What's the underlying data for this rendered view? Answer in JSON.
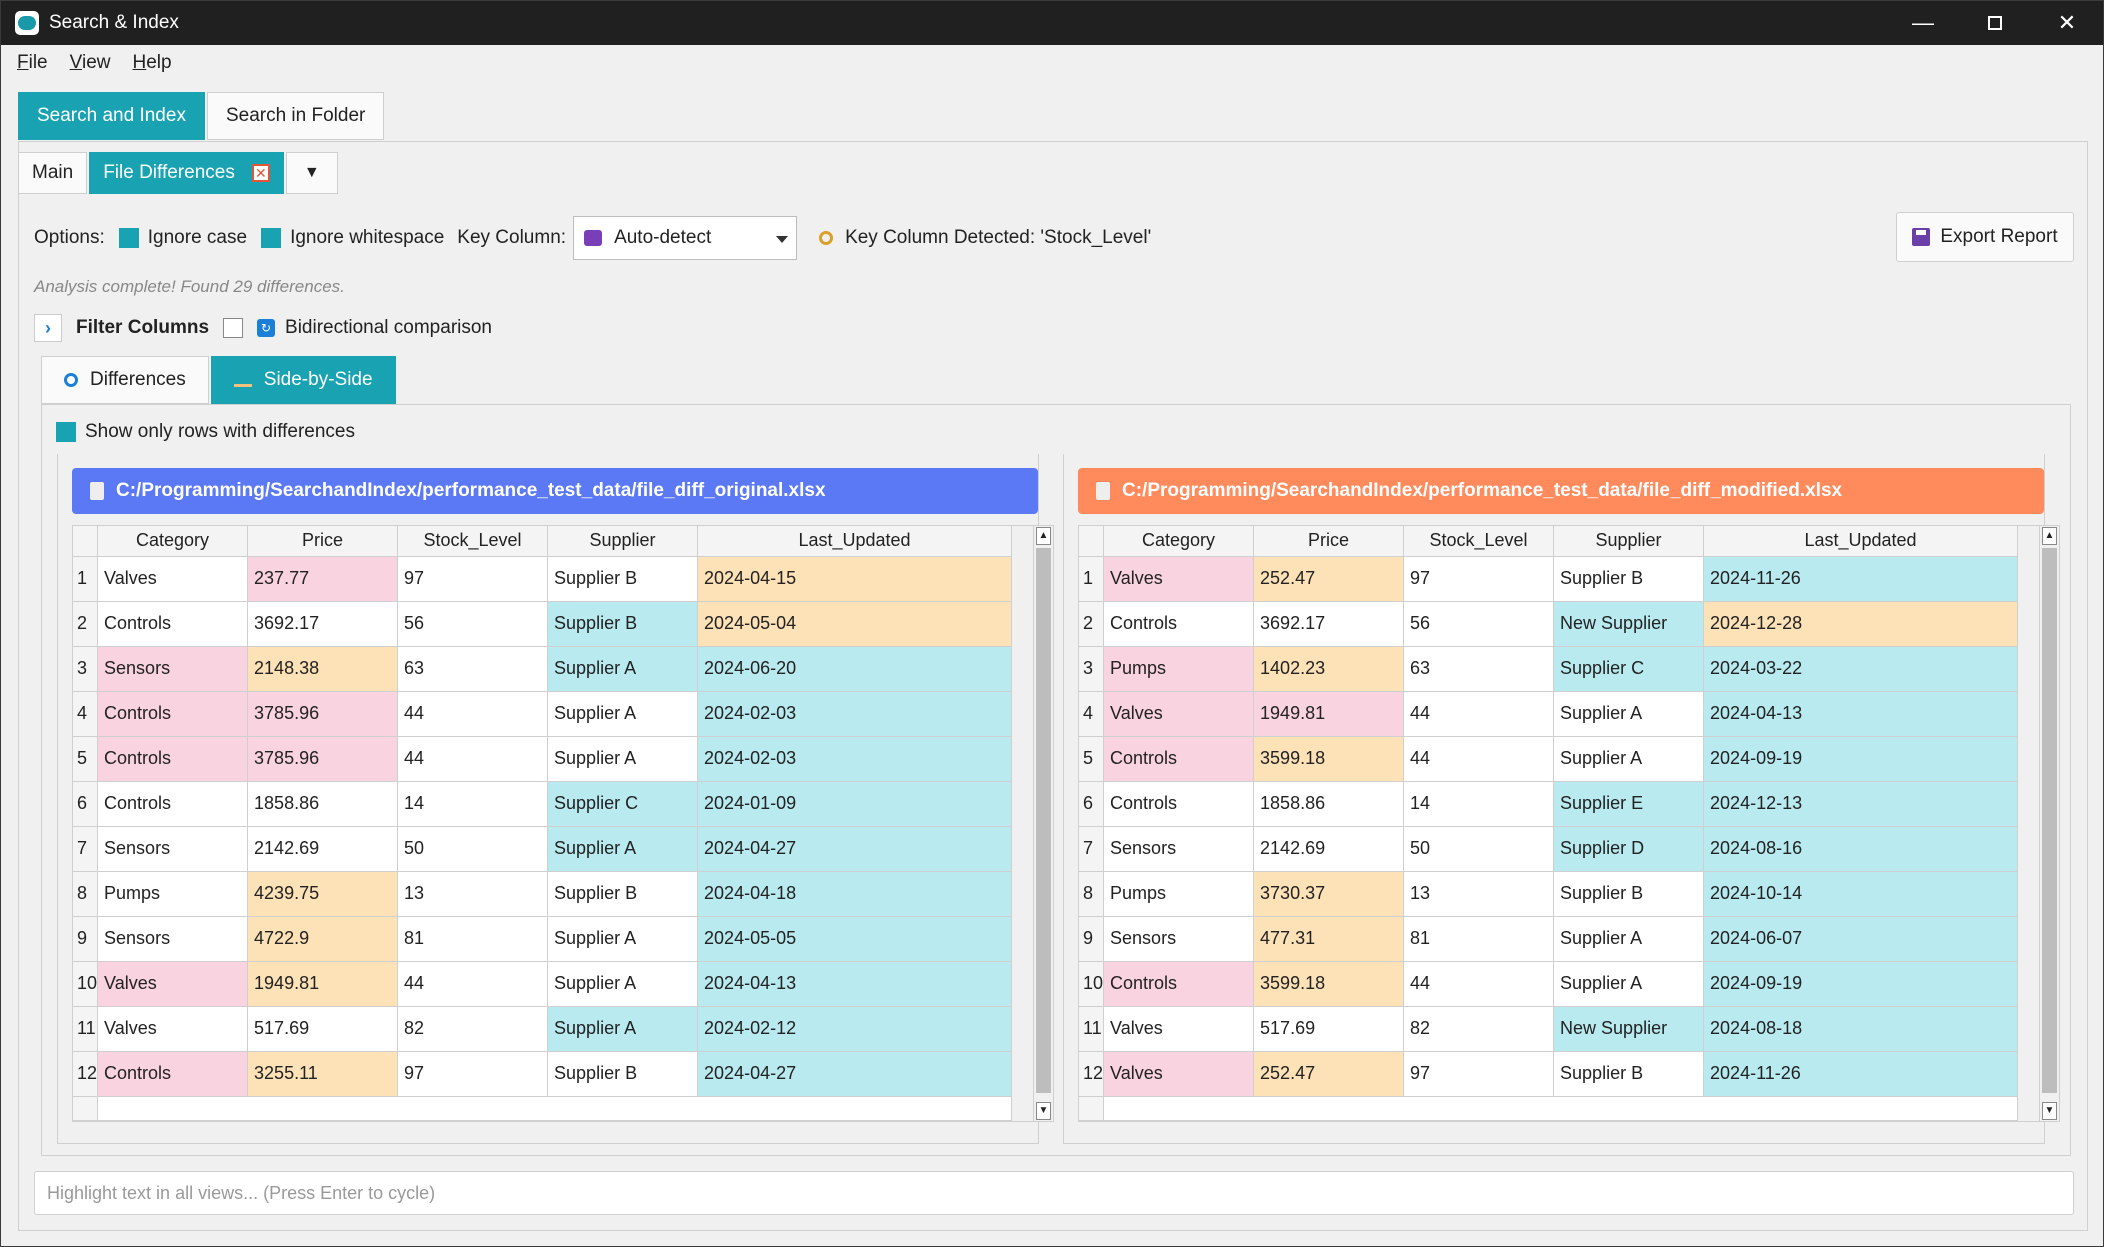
{
  "window": {
    "title": "Search & Index"
  },
  "menu": {
    "file": "File",
    "file_u": "F",
    "file_rest": "ile",
    "view": "View",
    "view_u": "V",
    "view_rest": "iew",
    "help": "Help",
    "help_u": "H",
    "help_rest": "elp"
  },
  "top_tabs": [
    {
      "label": "Search and Index",
      "active": true
    },
    {
      "label": "Search in Folder",
      "active": false
    }
  ],
  "sub_tabs": {
    "main": "Main",
    "file_diff": "File Differences"
  },
  "options": {
    "label": "Options:",
    "ignore_case": "Ignore case",
    "ignore_whitespace": "Ignore whitespace",
    "key_column_label": "Key Column:",
    "key_column_value": "Auto-detect",
    "key_detected": "Key Column Detected: 'Stock_Level'",
    "export": "Export Report"
  },
  "status": "Analysis complete! Found 29 differences.",
  "filter": {
    "label": "Filter Columns",
    "bidirectional": "Bidirectional comparison"
  },
  "view_tabs": {
    "differences": "Differences",
    "side_by_side": "Side-by-Side"
  },
  "show_only": "Show only rows with differences",
  "colors": {
    "accent": "#19a2b2",
    "left_header": "#5b78f5",
    "right_header": "#ff8a5c",
    "diff_pink": "#f9d3e0",
    "diff_orange": "#fde1b7",
    "diff_cyan": "#b8eaf0"
  },
  "left": {
    "path": "C:/Programming/SearchandIndex/performance_test_data/file_diff_original.xlsx",
    "columns": [
      "Category",
      "Price",
      "Stock_Level",
      "Supplier",
      "Last_Updated"
    ],
    "rows": [
      {
        "n": "1",
        "cells": [
          "Valves",
          "237.77",
          "97",
          "Supplier B",
          "2024-04-15"
        ],
        "hl": [
          "",
          "pink",
          "",
          "",
          "orange"
        ]
      },
      {
        "n": "2",
        "cells": [
          "Controls",
          "3692.17",
          "56",
          "Supplier B",
          "2024-05-04"
        ],
        "hl": [
          "",
          "",
          "",
          "cyan",
          "orange"
        ]
      },
      {
        "n": "3",
        "cells": [
          "Sensors",
          "2148.38",
          "63",
          "Supplier A",
          "2024-06-20"
        ],
        "hl": [
          "pink",
          "orange",
          "",
          "cyan",
          "cyan"
        ]
      },
      {
        "n": "4",
        "cells": [
          "Controls",
          "3785.96",
          "44",
          "Supplier A",
          "2024-02-03"
        ],
        "hl": [
          "pink",
          "pink",
          "",
          "",
          "cyan"
        ]
      },
      {
        "n": "5",
        "cells": [
          "Controls",
          "3785.96",
          "44",
          "Supplier A",
          "2024-02-03"
        ],
        "hl": [
          "pink",
          "pink",
          "",
          "",
          "cyan"
        ]
      },
      {
        "n": "6",
        "cells": [
          "Controls",
          "1858.86",
          "14",
          "Supplier C",
          "2024-01-09"
        ],
        "hl": [
          "",
          "",
          "",
          "cyan",
          "cyan"
        ]
      },
      {
        "n": "7",
        "cells": [
          "Sensors",
          "2142.69",
          "50",
          "Supplier A",
          "2024-04-27"
        ],
        "hl": [
          "",
          "",
          "",
          "cyan",
          "cyan"
        ]
      },
      {
        "n": "8",
        "cells": [
          "Pumps",
          "4239.75",
          "13",
          "Supplier B",
          "2024-04-18"
        ],
        "hl": [
          "",
          "orange",
          "",
          "",
          "cyan"
        ]
      },
      {
        "n": "9",
        "cells": [
          "Sensors",
          "4722.9",
          "81",
          "Supplier A",
          "2024-05-05"
        ],
        "hl": [
          "",
          "orange",
          "",
          "",
          "cyan"
        ]
      },
      {
        "n": "10",
        "cells": [
          "Valves",
          "1949.81",
          "44",
          "Supplier A",
          "2024-04-13"
        ],
        "hl": [
          "pink",
          "orange",
          "",
          "",
          "cyan"
        ]
      },
      {
        "n": "11",
        "cells": [
          "Valves",
          "517.69",
          "82",
          "Supplier A",
          "2024-02-12"
        ],
        "hl": [
          "",
          "",
          "",
          "cyan",
          "cyan"
        ]
      },
      {
        "n": "12",
        "cells": [
          "Controls",
          "3255.11",
          "97",
          "Supplier B",
          "2024-04-27"
        ],
        "hl": [
          "pink",
          "orange",
          "",
          "",
          "cyan"
        ]
      }
    ]
  },
  "right": {
    "path": "C:/Programming/SearchandIndex/performance_test_data/file_diff_modified.xlsx",
    "columns": [
      "Category",
      "Price",
      "Stock_Level",
      "Supplier",
      "Last_Updated"
    ],
    "rows": [
      {
        "n": "1",
        "cells": [
          "Valves",
          "252.47",
          "97",
          "Supplier B",
          "2024-11-26"
        ],
        "hl": [
          "pink",
          "orange",
          "",
          "",
          "cyan"
        ]
      },
      {
        "n": "2",
        "cells": [
          "Controls",
          "3692.17",
          "56",
          "New Supplier",
          "2024-12-28"
        ],
        "hl": [
          "",
          "",
          "",
          "cyan",
          "orange"
        ]
      },
      {
        "n": "3",
        "cells": [
          "Pumps",
          "1402.23",
          "63",
          "Supplier C",
          "2024-03-22"
        ],
        "hl": [
          "pink",
          "orange",
          "",
          "cyan",
          "cyan"
        ]
      },
      {
        "n": "4",
        "cells": [
          "Valves",
          "1949.81",
          "44",
          "Supplier A",
          "2024-04-13"
        ],
        "hl": [
          "pink",
          "pink",
          "",
          "",
          "cyan"
        ]
      },
      {
        "n": "5",
        "cells": [
          "Controls",
          "3599.18",
          "44",
          "Supplier A",
          "2024-09-19"
        ],
        "hl": [
          "pink",
          "orange",
          "",
          "",
          "cyan"
        ]
      },
      {
        "n": "6",
        "cells": [
          "Controls",
          "1858.86",
          "14",
          "Supplier E",
          "2024-12-13"
        ],
        "hl": [
          "",
          "",
          "",
          "cyan",
          "cyan"
        ]
      },
      {
        "n": "7",
        "cells": [
          "Sensors",
          "2142.69",
          "50",
          "Supplier D",
          "2024-08-16"
        ],
        "hl": [
          "",
          "",
          "",
          "cyan",
          "cyan"
        ]
      },
      {
        "n": "8",
        "cells": [
          "Pumps",
          "3730.37",
          "13",
          "Supplier B",
          "2024-10-14"
        ],
        "hl": [
          "",
          "orange",
          "",
          "",
          "cyan"
        ]
      },
      {
        "n": "9",
        "cells": [
          "Sensors",
          "477.31",
          "81",
          "Supplier A",
          "2024-06-07"
        ],
        "hl": [
          "",
          "orange",
          "",
          "",
          "cyan"
        ]
      },
      {
        "n": "10",
        "cells": [
          "Controls",
          "3599.18",
          "44",
          "Supplier A",
          "2024-09-19"
        ],
        "hl": [
          "pink",
          "orange",
          "",
          "",
          "cyan"
        ]
      },
      {
        "n": "11",
        "cells": [
          "Valves",
          "517.69",
          "82",
          "New Supplier",
          "2024-08-18"
        ],
        "hl": [
          "",
          "",
          "",
          "cyan",
          "cyan"
        ]
      },
      {
        "n": "12",
        "cells": [
          "Valves",
          "252.47",
          "97",
          "Supplier B",
          "2024-11-26"
        ],
        "hl": [
          "pink",
          "orange",
          "",
          "",
          "cyan"
        ]
      }
    ]
  },
  "highlight": {
    "placeholder": "Highlight text in all views... (Press Enter to cycle)"
  }
}
